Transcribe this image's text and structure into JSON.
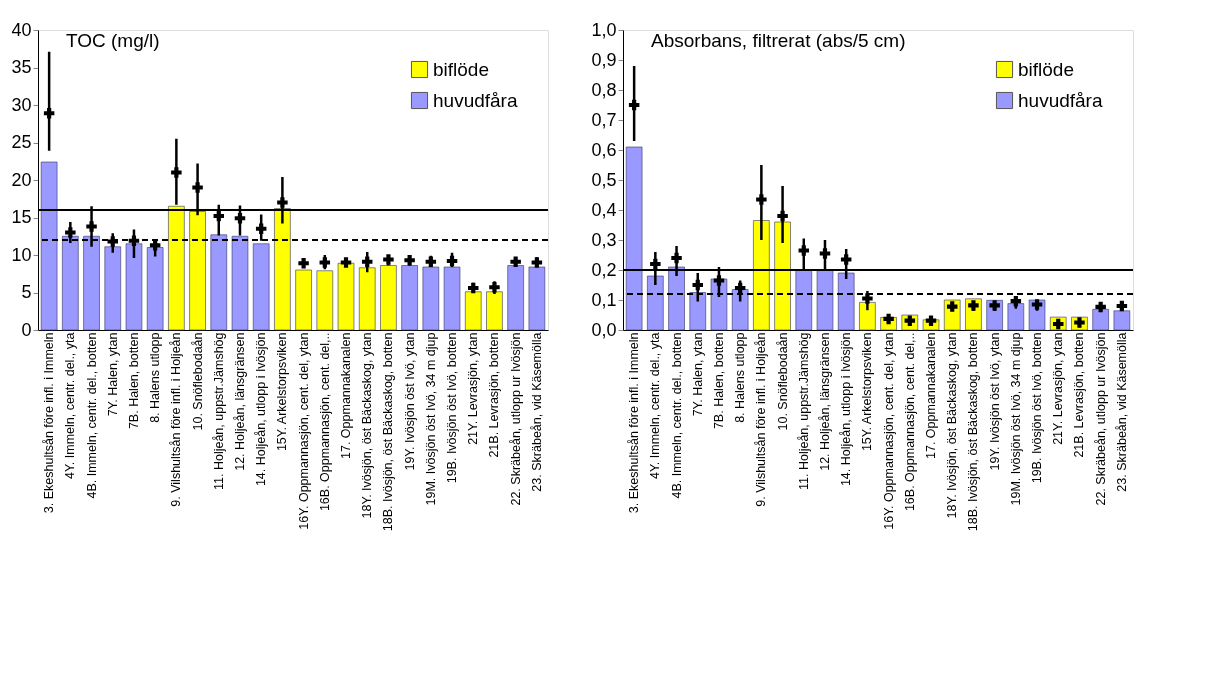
{
  "chart_data": [
    {
      "type": "bar",
      "title": "TOC (mg/l)",
      "categories": [
        "3. Ekeshultsån före infl. i Immeln",
        "4Y. Immeln, centr. del., yta",
        "4B. Immeln, centr. del., botten",
        "7Y. Halen, ytan",
        "7B. Halen, botten",
        "8. Halens utlopp",
        "9. Vilshultsån före infl. i Holjeån",
        "10. Snöflebodaån",
        "11. Holjeån, uppstr.Jämshög",
        "12. Holjeån, länsgränsen",
        "14. Holjeån, utlopp i Ivösjön",
        "15Y. Arkelstorpsviken",
        "16Y. Oppmannasjön, cent. del, ytan",
        "16B. Oppmannasjön, cent. del,..",
        "17. Oppmannakanalen",
        "18Y. Ivösjön, öst  Bäckaskog, ytan",
        "18B. Ivösjön, öst  Bäckaskog, botten",
        "19Y. Ivösjön öst Ivö, ytan",
        "19M. Ivösjön öst Ivö, 34 m djup",
        "19B. Ivösjön öst Ivö, botten",
        "21Y. Levrasjön, ytan",
        "21B. Levrasjön, botten",
        "22. Skräbeån, utlopp ur Ivösjön",
        "23. Skräbeån, vid Käsemölla"
      ],
      "series": [
        {
          "name": "biflöde",
          "color": "#ffff00",
          "values": [
            null,
            null,
            null,
            null,
            null,
            null,
            16.5,
            15.8,
            null,
            null,
            null,
            16.2,
            8.0,
            7.9,
            8.9,
            8.3,
            8.6,
            null,
            null,
            null,
            5.1,
            5.1,
            null,
            null
          ]
        },
        {
          "name": "huvudfåra",
          "color": "#9999ff",
          "values": [
            22.4,
            12.5,
            12.5,
            11.1,
            11.5,
            11.0,
            null,
            null,
            12.7,
            12.5,
            11.5,
            null,
            null,
            null,
            null,
            null,
            null,
            8.6,
            8.4,
            8.4,
            null,
            null,
            8.6,
            8.4
          ]
        },
        {
          "type": "scatter",
          "marker": "cross",
          "color": "#000000",
          "values": [
            28.9,
            13.0,
            13.8,
            11.8,
            11.9,
            11.3,
            21.0,
            19.0,
            15.2,
            14.9,
            13.5,
            17.0,
            8.9,
            9.0,
            9.0,
            9.1,
            9.4,
            9.3,
            9.1,
            9.2,
            5.6,
            5.7,
            9.1,
            9.0
          ],
          "errors": [
            [
              23.9,
              37.1
            ],
            [
              11.6,
              14.4
            ],
            [
              11.1,
              16.5
            ],
            [
              10.3,
              12.9
            ],
            [
              9.6,
              13.4
            ],
            [
              9.8,
              12.1
            ],
            [
              16.7,
              25.5
            ],
            [
              15.3,
              22.2
            ],
            [
              12.6,
              16.7
            ],
            [
              12.6,
              16.6
            ],
            [
              11.9,
              15.4
            ],
            [
              14.2,
              20.4
            ],
            [
              8.4,
              9.5
            ],
            [
              8.1,
              10.0
            ],
            null,
            [
              7.7,
              10.4
            ],
            [
              8.6,
              10.0
            ],
            [
              8.6,
              10.0
            ],
            [
              8.4,
              9.9
            ],
            [
              8.4,
              10.3
            ],
            [
              5.2,
              6.3
            ],
            [
              4.8,
              6.5
            ],
            [
              8.6,
              9.7
            ],
            [
              8.4,
              9.7
            ]
          ]
        }
      ],
      "ylim": [
        0,
        40
      ],
      "yticks": [
        0,
        5,
        10,
        15,
        20,
        25,
        30,
        35,
        40
      ],
      "ref_lines": [
        {
          "axis": "y",
          "value": 16,
          "color": "#000000",
          "line_style": "solid"
        },
        {
          "axis": "y",
          "value": 12,
          "color": "#000000",
          "line_style": "dashed"
        }
      ],
      "legend": "top right",
      "grid": false
    },
    {
      "type": "bar",
      "title": "Absorbans, filtrerat (abs/5 cm)",
      "categories": [
        "3. Ekeshultsån före infl. i Immeln",
        "4Y. Immeln, centr. del., yta",
        "4B. Immeln, centr. del., botten",
        "7Y. Halen, ytan",
        "7B. Halen, botten",
        "8. Halens utlopp",
        "9. Vilshultsån före infl. i Holjeån",
        "10. Snöflebodaån",
        "11. Holjeån, uppstr.Jämshög",
        "12. Holjeån, länsgränsen",
        "14. Holjeån, utlopp i Ivösjön",
        "15Y. Arkelstorpsviken",
        "16Y. Oppmannasjön, cent. del, ytan",
        "16B. Oppmannasjön, cent. del,..",
        "17. Oppmannakanalen",
        "18Y. Ivösjön, öst  Bäckaskog, ytan",
        "18B. Ivösjön, öst  Bäckaskog, botten",
        "19Y. Ivösjön öst Ivö, ytan",
        "19M. Ivösjön öst Ivö, 34 m djup",
        "19B. Ivösjön öst Ivö, botten",
        "21Y. Levrasjön, ytan",
        "21B. Levrasjön, botten",
        "22. Skräbeån, utlopp ur Ivösjön",
        "23. Skräbeån, vid Käsemölla"
      ],
      "series": [
        {
          "name": "biflöde",
          "color": "#ffff00",
          "values": [
            null,
            null,
            null,
            null,
            null,
            null,
            0.365,
            0.36,
            null,
            null,
            null,
            0.092,
            0.042,
            0.05,
            0.034,
            0.1,
            0.104,
            null,
            null,
            null,
            0.043,
            0.043,
            null,
            null
          ]
        },
        {
          "name": "huvudfåra",
          "color": "#9999ff",
          "values": [
            0.61,
            0.18,
            0.21,
            0.125,
            0.17,
            0.135,
            null,
            null,
            0.2,
            0.2,
            0.19,
            null,
            null,
            null,
            null,
            null,
            null,
            0.099,
            0.088,
            0.1,
            null,
            null,
            0.069,
            0.064
          ]
        },
        {
          "type": "scatter",
          "marker": "cross",
          "color": "#000000",
          "values": [
            0.75,
            0.22,
            0.24,
            0.15,
            0.165,
            0.14,
            0.435,
            0.38,
            0.265,
            0.255,
            0.235,
            0.105,
            0.037,
            0.031,
            0.031,
            0.078,
            0.082,
            0.082,
            0.096,
            0.085,
            0.02,
            0.025,
            0.077,
            0.08
          ],
          "errors": [
            [
              0.63,
              0.88
            ],
            [
              0.15,
              0.26
            ],
            [
              0.18,
              0.28
            ],
            [
              0.095,
              0.19
            ],
            [
              0.11,
              0.21
            ],
            [
              0.095,
              0.165
            ],
            [
              0.3,
              0.55
            ],
            [
              0.29,
              0.48
            ],
            [
              0.2,
              0.305
            ],
            [
              0.2,
              0.3
            ],
            [
              0.17,
              0.27
            ],
            [
              0.066,
              0.13
            ],
            [
              0.028,
              0.047
            ],
            null,
            null,
            [
              0.071,
              0.085
            ],
            [
              0.064,
              0.096
            ],
            [
              0.064,
              0.096
            ],
            [
              0.071,
              0.11
            ],
            [
              0.064,
              0.096
            ],
            [
              0.009,
              0.028
            ],
            [
              0.009,
              0.039
            ],
            [
              0.07,
              0.085
            ],
            [
              0.07,
              0.088
            ]
          ]
        }
      ],
      "ylim": [
        0,
        1
      ],
      "yticks": [
        {
          "value": 0,
          "label": "0,0"
        },
        {
          "value": 0.1,
          "label": "0,1"
        },
        {
          "value": 0.2,
          "label": "0,2"
        },
        {
          "value": 0.3,
          "label": "0,3"
        },
        {
          "value": 0.4,
          "label": "0,4"
        },
        {
          "value": 0.5,
          "label": "0,5"
        },
        {
          "value": 0.6,
          "label": "0,6"
        },
        {
          "value": 0.7,
          "label": "0,7"
        },
        {
          "value": 0.8,
          "label": "0,8"
        },
        {
          "value": 0.9,
          "label": "0,9"
        },
        {
          "value": 1,
          "label": "1,0"
        }
      ],
      "ref_lines": [
        {
          "axis": "y",
          "value": 0.2,
          "color": "#000000",
          "line_style": "solid"
        },
        {
          "axis": "y",
          "value": 0.12,
          "color": "#000000",
          "line_style": "dashed"
        }
      ],
      "legend": "top right",
      "grid": false
    }
  ]
}
